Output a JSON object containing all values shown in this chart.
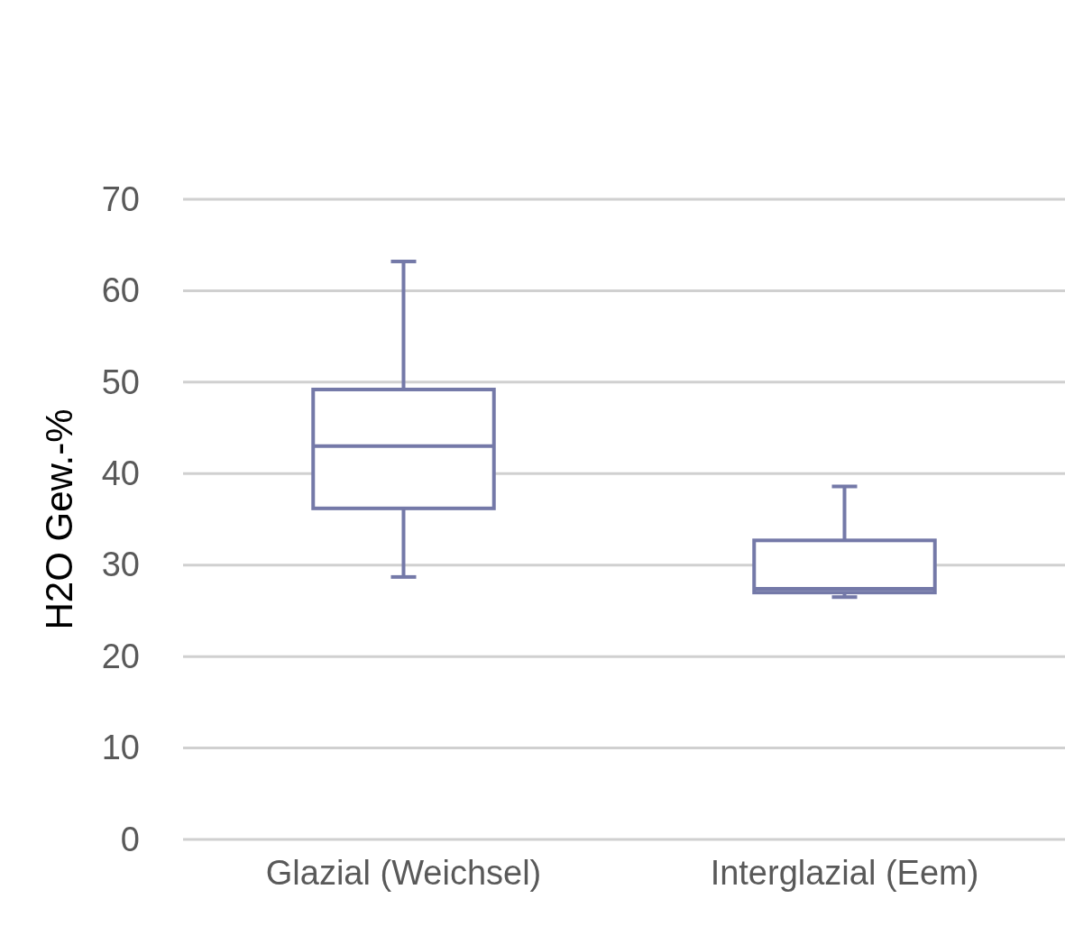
{
  "chart_data": {
    "type": "box",
    "ylabel": "H2O Gew.-%",
    "categories": [
      "Glazial (Weichsel)",
      "Interglazial (Eem)"
    ],
    "boxes": [
      {
        "low": 28.7,
        "q1": 36.2,
        "median": 43.0,
        "q3": 49.2,
        "high": 63.2
      },
      {
        "low": 26.5,
        "q1": 27.0,
        "median": 27.4,
        "q3": 32.7,
        "high": 38.6
      }
    ],
    "color": "#7479a8",
    "ylim": [
      0,
      70
    ],
    "yticks": [
      0,
      10,
      20,
      30,
      40,
      50,
      60,
      70
    ],
    "grid": "y"
  }
}
